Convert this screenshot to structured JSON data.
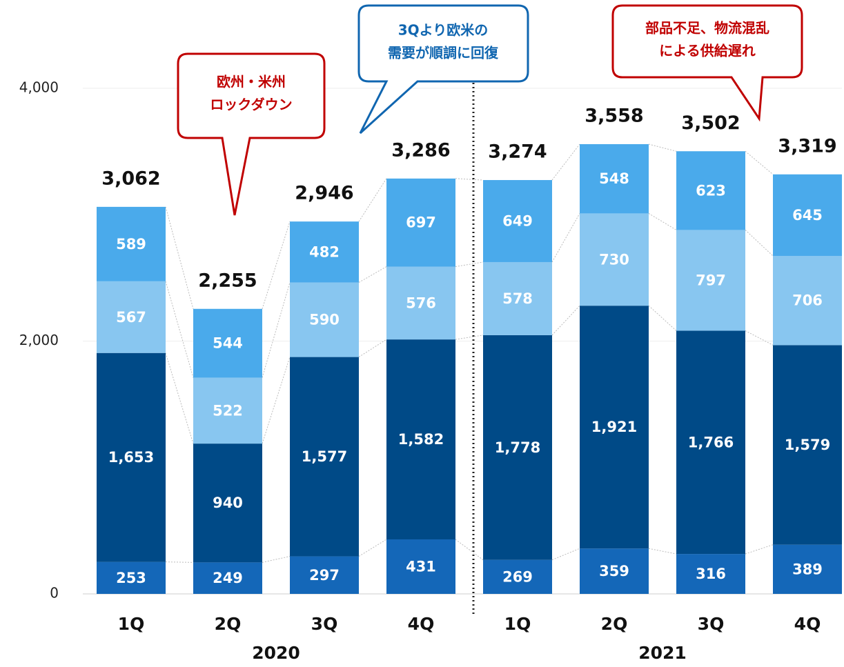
{
  "chart_data": {
    "type": "stacked_bar",
    "categories": [
      "1Q",
      "2Q",
      "3Q",
      "4Q",
      "1Q",
      "2Q",
      "3Q",
      "4Q"
    ],
    "groups": [
      {
        "label": "2020",
        "size": 4
      },
      {
        "label": "2021",
        "size": 4
      }
    ],
    "series": [
      {
        "color": "#1467b8",
        "values": [
          253,
          249,
          297,
          431,
          269,
          359,
          316,
          389
        ]
      },
      {
        "color": "#004a87",
        "values": [
          1653,
          940,
          1577,
          1582,
          1778,
          1921,
          1766,
          1579
        ],
        "value_labels": [
          "1,653",
          "940",
          "1,577",
          "1,582",
          "1,778",
          "1,921",
          "1,766",
          "1,579"
        ]
      },
      {
        "color": "#88c6f0",
        "values": [
          567,
          522,
          590,
          576,
          578,
          730,
          797,
          706
        ]
      },
      {
        "color": "#4aaaeb",
        "values": [
          589,
          544,
          482,
          697,
          649,
          548,
          623,
          645
        ]
      }
    ],
    "totals": [
      3062,
      2255,
      2946,
      3286,
      3274,
      3558,
      3502,
      3319
    ],
    "total_labels": [
      "3,062",
      "2,255",
      "2,946",
      "3,286",
      "3,274",
      "3,558",
      "3,502",
      "3,319"
    ],
    "ylim": [
      0,
      4000
    ],
    "yticks": [
      0,
      {
        "value": 2000,
        "label": "2,000"
      },
      {
        "value": 4000,
        "label": "4,000"
      }
    ],
    "grid": true,
    "annotations": [
      {
        "lines": [
          "欧州・米州",
          "ロックダウン"
        ],
        "color": "#c00000"
      },
      {
        "lines": [
          "3Qより欧米の",
          "需要が順調に回復"
        ],
        "color": "#1066b0"
      },
      {
        "lines": [
          "部品不足、物流混乱",
          "による供給遅れ"
        ],
        "color": "#c00000"
      }
    ]
  }
}
